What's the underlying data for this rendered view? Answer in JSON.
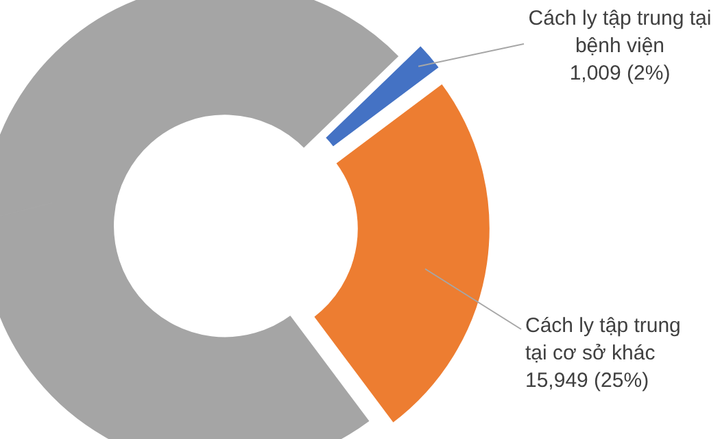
{
  "chart_data": {
    "type": "donut",
    "categories": [
      null,
      "Cách ly tập trung tại bệnh viện",
      "Cách ly tập trung tại cơ sở khác"
    ],
    "values": [
      73,
      2,
      25
    ],
    "colors": [
      "#a5a5a5",
      "#4472c4",
      "#ed7d31"
    ],
    "value_labels": [
      null,
      "1,009 (2%)",
      "15,949 (25%)"
    ]
  }
}
